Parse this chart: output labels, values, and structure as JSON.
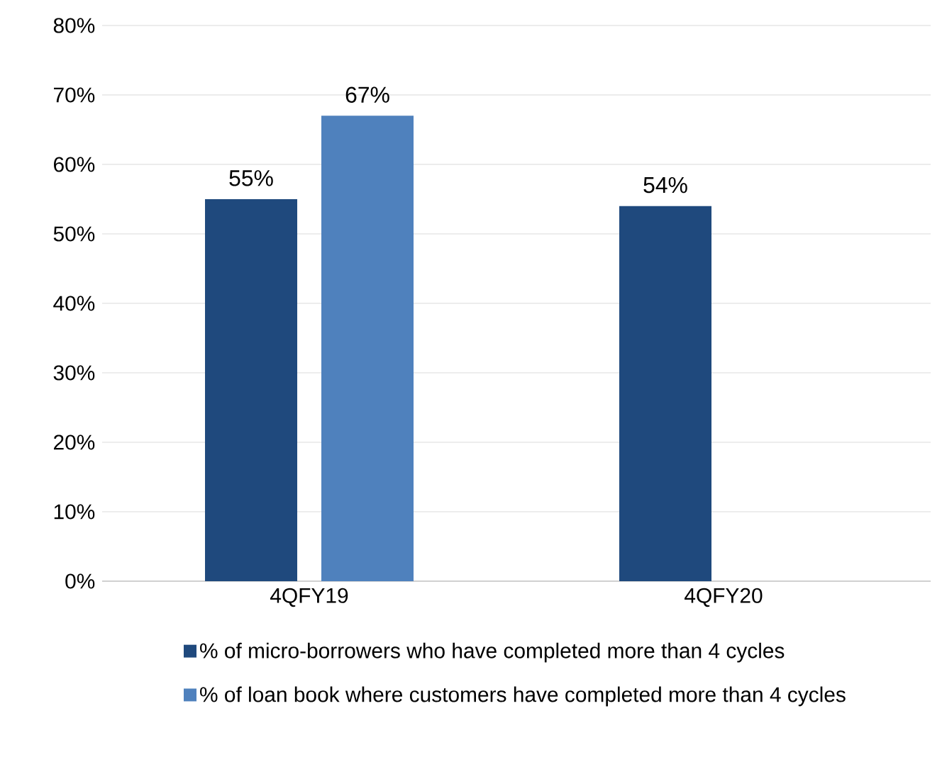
{
  "chart_data": {
    "type": "bar",
    "categories": [
      "4QFY19",
      "4QFY20"
    ],
    "series": [
      {
        "name": "% of micro-borrowers who have completed more than 4 cycles",
        "color": "#1f497d",
        "values": [
          55,
          54
        ],
        "value_labels": [
          "55%",
          "54%"
        ]
      },
      {
        "name": "% of loan book where customers have completed more than 4 cycles",
        "color": "#4f81bd",
        "values": [
          67,
          null
        ],
        "value_labels": [
          "67%",
          null
        ]
      }
    ],
    "ylim": [
      0,
      80
    ],
    "yticks": [
      {
        "value": 0,
        "label": "0%"
      },
      {
        "value": 10,
        "label": "10%"
      },
      {
        "value": 20,
        "label": "20%"
      },
      {
        "value": 30,
        "label": "30%"
      },
      {
        "value": 40,
        "label": "40%"
      },
      {
        "value": 50,
        "label": "50%"
      },
      {
        "value": 60,
        "label": "60%"
      },
      {
        "value": 70,
        "label": "70%"
      },
      {
        "value": 80,
        "label": "80%"
      }
    ],
    "grid": "y",
    "legend": "bottom"
  }
}
